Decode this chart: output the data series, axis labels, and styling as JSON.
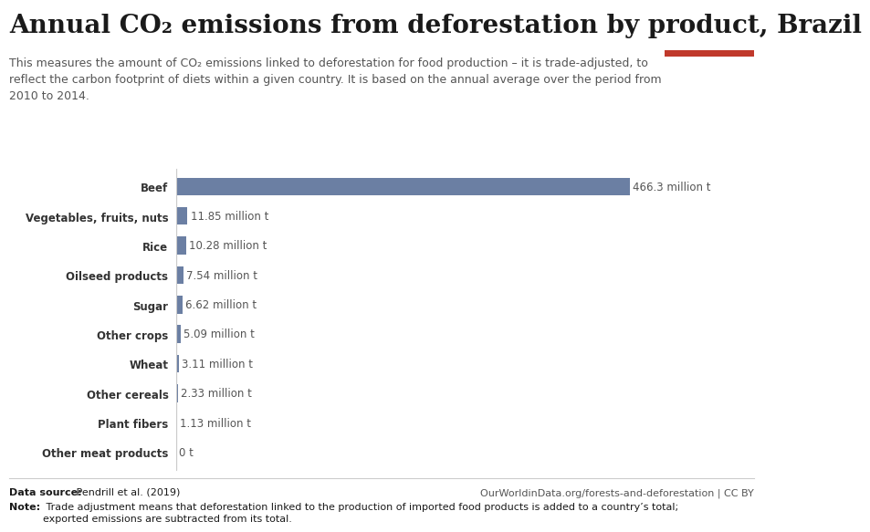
{
  "title": "Annual CO₂ emissions from deforestation by product, Brazil",
  "subtitle": "This measures the amount of CO₂ emissions linked to deforestation for food production – it is trade-adjusted, to\nreflect the carbon footprint of diets within a given country. It is based on the annual average over the period from\n2010 to 2014.",
  "categories": [
    "Beef",
    "Vegetables, fruits, nuts",
    "Rice",
    "Oilseed products",
    "Sugar",
    "Other crops",
    "Wheat",
    "Other cereals",
    "Plant fibers",
    "Other meat products"
  ],
  "values": [
    466.3,
    11.85,
    10.28,
    7.54,
    6.62,
    5.09,
    3.11,
    2.33,
    1.13,
    0
  ],
  "labels": [
    "466.3 million t",
    "11.85 million t",
    "10.28 million t",
    "7.54 million t",
    "6.62 million t",
    "5.09 million t",
    "3.11 million t",
    "2.33 million t",
    "1.13 million t",
    "0 t"
  ],
  "bar_color": "#6b7fa3",
  "background_color": "#ffffff",
  "text_color": "#333333",
  "label_color": "#555555",
  "source_bold": "Data source:",
  "source_rest": " Pendrill et al. (2019)",
  "url_text": "OurWorldinData.org/forests-and-deforestation | CC BY",
  "note_bold": "Note:",
  "note_rest": " Trade adjustment means that deforestation linked to the production of imported food products is added to a country’s total;\nexported emissions are subtracted from its total.",
  "owid_box_color": "#1a3a5c",
  "owid_red": "#c0392b",
  "xlim": [
    0,
    510
  ],
  "title_fontsize": 20,
  "subtitle_fontsize": 9,
  "label_fontsize": 8.5,
  "bar_label_fontsize": 8.5,
  "footer_fontsize": 8
}
